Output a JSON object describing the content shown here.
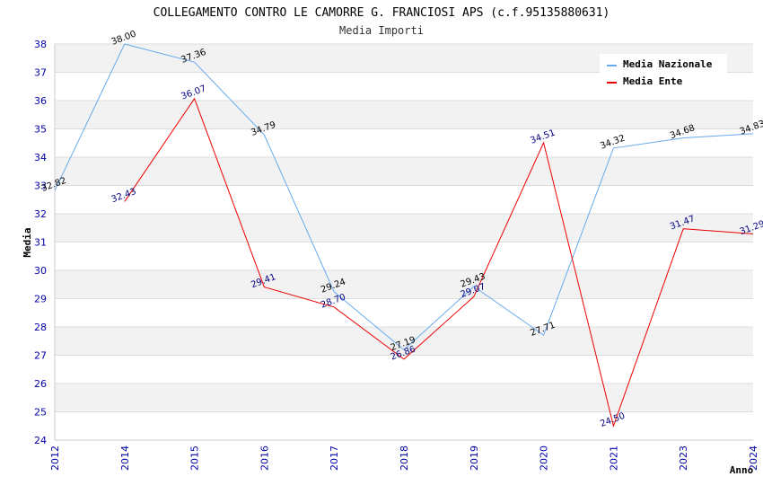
{
  "chart_data": {
    "type": "line",
    "title": "COLLEGAMENTO CONTRO LE CAMORRE G. FRANCIOSI APS (c.f.95135880631)",
    "subtitle": "Media Importi",
    "xlabel": "Anno",
    "ylabel": "Media",
    "ylim": [
      24,
      38
    ],
    "yticks": [
      "24",
      "25",
      "26",
      "27",
      "28",
      "29",
      "30",
      "31",
      "32",
      "33",
      "34",
      "35",
      "36",
      "37",
      "38"
    ],
    "categories": [
      "2012",
      "2014",
      "2015",
      "2016",
      "2017",
      "2018",
      "2019",
      "2020",
      "2021",
      "2023",
      "2024"
    ],
    "legend_position": "top-right",
    "series": [
      {
        "name": "Media Nazionale",
        "color": "#66aaee",
        "values": [
          32.82,
          38.0,
          37.36,
          34.79,
          29.24,
          27.19,
          29.43,
          27.71,
          34.32,
          34.68,
          34.83
        ],
        "labels": [
          "32.82",
          "38.00",
          "37.36",
          "34.79",
          "29.24",
          "27.19",
          "29.43",
          "27.71",
          "34.32",
          "34.68",
          "34.83"
        ]
      },
      {
        "name": "Media Ente",
        "color": "#ee0000",
        "values": [
          null,
          32.43,
          36.07,
          29.41,
          28.7,
          26.86,
          29.07,
          34.51,
          24.5,
          31.47,
          31.29
        ],
        "labels": [
          null,
          "32.43",
          "36.07",
          "29.41",
          "28.70",
          "26.86",
          "29.07",
          "34.51",
          "24.50",
          "31.47",
          "31.29"
        ]
      }
    ]
  }
}
